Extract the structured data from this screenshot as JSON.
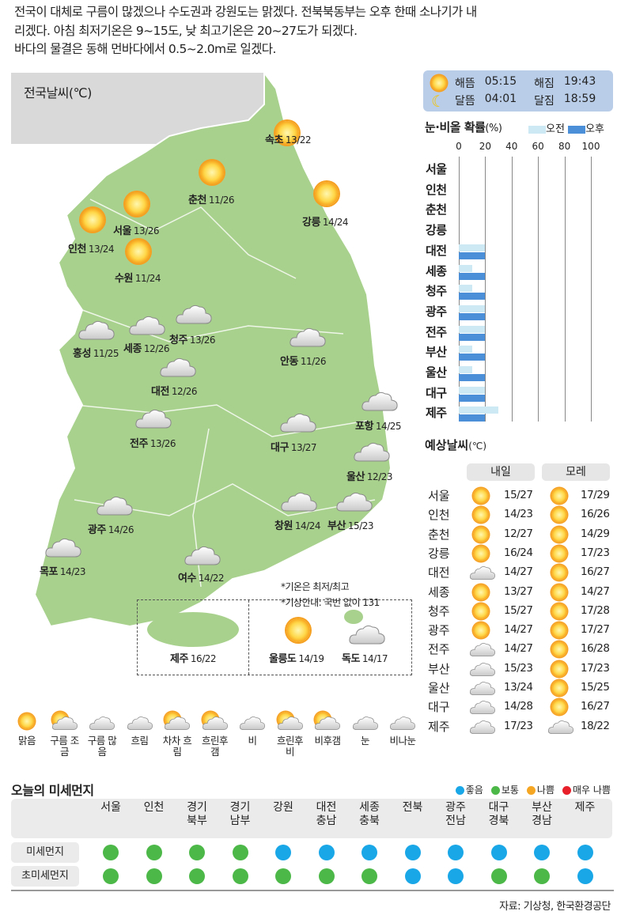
{
  "summary": [
    "전국이 대체로 구름이 많겠으나 수도권과 강원도는 맑겠다. 전북북동부는 오후 한때 소나기가 내",
    "리겠다. 아침 최저기온은 9~15도, 낮 최고기온은 20~27도가 되겠다.",
    "바다의 물결은 동해 먼바다에서 0.5~2.0m로 일겠다."
  ],
  "map": {
    "title": "전국날씨(℃)",
    "notes": [
      "*기온은 최저/최고",
      "*기상안내: 국번 없이 131"
    ],
    "cities": [
      {
        "name": "속초",
        "temp": "13/22",
        "icon": "sun"
      },
      {
        "name": "춘천",
        "temp": "11/26",
        "icon": "sun"
      },
      {
        "name": "강릉",
        "temp": "14/24",
        "icon": "sun"
      },
      {
        "name": "서울",
        "temp": "13/26",
        "icon": "sun"
      },
      {
        "name": "인천",
        "temp": "13/24",
        "icon": "sun"
      },
      {
        "name": "수원",
        "temp": "11/24",
        "icon": "sun"
      },
      {
        "name": "홍성",
        "temp": "11/25",
        "icon": "cloud"
      },
      {
        "name": "세종",
        "temp": "12/26",
        "icon": "cloud"
      },
      {
        "name": "청주",
        "temp": "13/26",
        "icon": "cloud"
      },
      {
        "name": "안동",
        "temp": "11/26",
        "icon": "cloud"
      },
      {
        "name": "대전",
        "temp": "12/26",
        "icon": "cloud"
      },
      {
        "name": "포항",
        "temp": "14/25",
        "icon": "cloud"
      },
      {
        "name": "전주",
        "temp": "13/26",
        "icon": "cloud"
      },
      {
        "name": "대구",
        "temp": "13/27",
        "icon": "cloud"
      },
      {
        "name": "울산",
        "temp": "12/23",
        "icon": "cloud"
      },
      {
        "name": "창원",
        "temp": "14/24",
        "icon": "cloud"
      },
      {
        "name": "부산",
        "temp": "15/23",
        "icon": "cloud"
      },
      {
        "name": "광주",
        "temp": "14/26",
        "icon": "cloud"
      },
      {
        "name": "목포",
        "temp": "14/23",
        "icon": "cloud"
      },
      {
        "name": "여수",
        "temp": "14/22",
        "icon": "cloud"
      },
      {
        "name": "제주",
        "temp": "16/22",
        "icon": "cloud"
      },
      {
        "name": "울릉도",
        "temp": "14/19",
        "icon": "sun"
      },
      {
        "name": "독도",
        "temp": "14/17",
        "icon": "cloud"
      }
    ]
  },
  "sun_moon": {
    "sunrise_label": "해뜸",
    "sunrise": "05:15",
    "sunset_label": "해짐",
    "sunset": "19:43",
    "moonrise_label": "달뜸",
    "moonrise": "04:01",
    "moonset_label": "달짐",
    "moonset": "18:59"
  },
  "chart_data": {
    "type": "bar",
    "orientation": "horizontal",
    "title": "눈·비올 확률",
    "unit": "(%)",
    "xlim": [
      0,
      100
    ],
    "ticks": [
      0,
      20,
      40,
      60,
      80,
      100
    ],
    "grid": true,
    "categories": [
      "서울",
      "인천",
      "춘천",
      "강릉",
      "대전",
      "세종",
      "청주",
      "광주",
      "전주",
      "부산",
      "울산",
      "대구",
      "제주"
    ],
    "series": [
      {
        "name": "오전",
        "color": "#cde9f3",
        "values": [
          0,
          0,
          0,
          0,
          20,
          10,
          10,
          20,
          20,
          10,
          10,
          20,
          30
        ]
      },
      {
        "name": "오후",
        "color": "#4a8fd8",
        "values": [
          0,
          0,
          0,
          0,
          20,
          20,
          20,
          20,
          20,
          20,
          20,
          20,
          20
        ]
      }
    ]
  },
  "forecast": {
    "title": "예상날씨",
    "unit": "(℃)",
    "days": [
      "내일",
      "모레"
    ],
    "rows": [
      {
        "city": "서울",
        "d1": {
          "icon": "sun",
          "temp": "15/27"
        },
        "d2": {
          "icon": "sun",
          "temp": "17/29"
        }
      },
      {
        "city": "인천",
        "d1": {
          "icon": "sun",
          "temp": "14/23"
        },
        "d2": {
          "icon": "sun",
          "temp": "16/26"
        }
      },
      {
        "city": "춘천",
        "d1": {
          "icon": "sun",
          "temp": "12/27"
        },
        "d2": {
          "icon": "sun",
          "temp": "14/29"
        }
      },
      {
        "city": "강릉",
        "d1": {
          "icon": "sun",
          "temp": "16/24"
        },
        "d2": {
          "icon": "sun",
          "temp": "17/23"
        }
      },
      {
        "city": "대전",
        "d1": {
          "icon": "cloud",
          "temp": "14/27"
        },
        "d2": {
          "icon": "sun",
          "temp": "16/27"
        }
      },
      {
        "city": "세종",
        "d1": {
          "icon": "sun",
          "temp": "13/27"
        },
        "d2": {
          "icon": "sun",
          "temp": "14/27"
        }
      },
      {
        "city": "청주",
        "d1": {
          "icon": "sun",
          "temp": "15/27"
        },
        "d2": {
          "icon": "sun",
          "temp": "17/28"
        }
      },
      {
        "city": "광주",
        "d1": {
          "icon": "sun",
          "temp": "14/27"
        },
        "d2": {
          "icon": "sun",
          "temp": "17/27"
        }
      },
      {
        "city": "전주",
        "d1": {
          "icon": "cloud",
          "temp": "14/27"
        },
        "d2": {
          "icon": "sun",
          "temp": "16/28"
        }
      },
      {
        "city": "부산",
        "d1": {
          "icon": "cloud",
          "temp": "15/23"
        },
        "d2": {
          "icon": "sun",
          "temp": "17/23"
        }
      },
      {
        "city": "울산",
        "d1": {
          "icon": "cloud",
          "temp": "13/24"
        },
        "d2": {
          "icon": "sun",
          "temp": "15/25"
        }
      },
      {
        "city": "대구",
        "d1": {
          "icon": "cloud",
          "temp": "14/28"
        },
        "d2": {
          "icon": "sun",
          "temp": "16/27"
        }
      },
      {
        "city": "제주",
        "d1": {
          "icon": "cloud",
          "temp": "17/23"
        },
        "d2": {
          "icon": "cloud",
          "temp": "18/22"
        }
      }
    ]
  },
  "legend": [
    {
      "icon": "sun",
      "label": "맑음"
    },
    {
      "icon": "sun-cloud",
      "label": "구름 조금"
    },
    {
      "icon": "cloud",
      "label": "구름 많음"
    },
    {
      "icon": "dark-cloud",
      "label": "흐림"
    },
    {
      "icon": "sun-cloud",
      "label": "차차 흐림"
    },
    {
      "icon": "cloud-sun",
      "label": "흐린후 갬"
    },
    {
      "icon": "rain",
      "label": "비"
    },
    {
      "icon": "sun-rain",
      "label": "흐린후 비"
    },
    {
      "icon": "sun-rain",
      "label": "비후갬"
    },
    {
      "icon": "snow",
      "label": "눈"
    },
    {
      "icon": "rain-snow",
      "label": "비나눈"
    }
  ],
  "dust": {
    "title": "오늘의 미세먼지",
    "levels": [
      {
        "label": "좋음",
        "color": "#1aa7e8"
      },
      {
        "label": "보통",
        "color": "#4cb848"
      },
      {
        "label": "나쁨",
        "color": "#f5a623"
      },
      {
        "label": "매우 나쁨",
        "color": "#e8202a"
      }
    ],
    "regions": [
      "서울",
      "인천",
      "경기 북부",
      "경기 남부",
      "강원",
      "대전 충남",
      "세종 충북",
      "전북",
      "광주 전남",
      "대구 경북",
      "부산 경남",
      "제주"
    ],
    "rows": [
      {
        "label": "미세먼지",
        "values": [
          "보통",
          "보통",
          "보통",
          "보통",
          "좋음",
          "좋음",
          "좋음",
          "좋음",
          "좋음",
          "좋음",
          "좋음",
          "좋음"
        ]
      },
      {
        "label": "초미세먼지",
        "values": [
          "보통",
          "보통",
          "보통",
          "보통",
          "보통",
          "보통",
          "보통",
          "좋음",
          "좋음",
          "보통",
          "보통",
          "좋음"
        ]
      }
    ]
  },
  "source": "자료: 기상청, 한국환경공단"
}
